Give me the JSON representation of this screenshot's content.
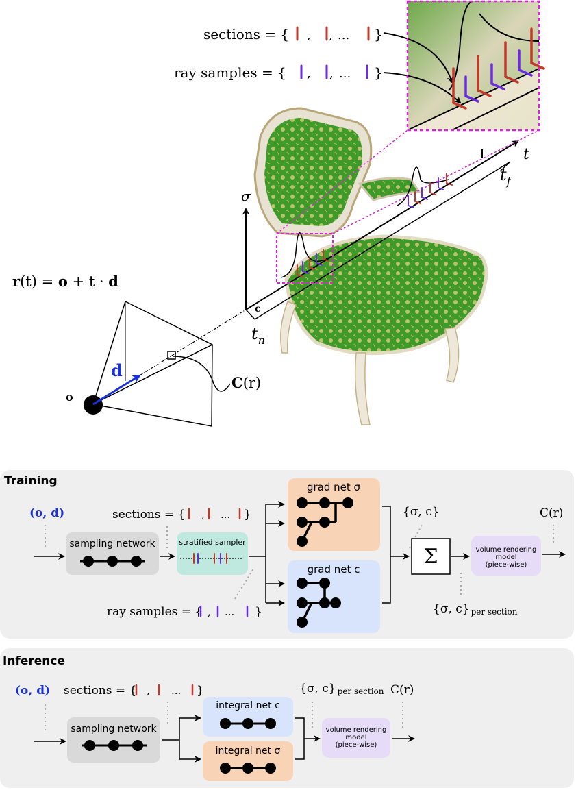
{
  "top": {
    "legend_sections": {
      "prefix": "sections = {",
      "ellipsis": "...",
      "close": "}"
    },
    "legend_samples": {
      "prefix": "ray samples = {",
      "ellipsis": "...",
      "close": "}"
    },
    "ray_eq": {
      "lhs": "r",
      "arg": "(t) = ",
      "o": "o",
      "plus": " + t · ",
      "d": "d"
    },
    "sigma": "σ",
    "t": "t",
    "t_f": {
      "base": "t",
      "sub": "f"
    },
    "t_n": {
      "base": "t",
      "sub": "n"
    },
    "c": "c",
    "d": "d",
    "o": "o",
    "color_out": {
      "C": "C",
      "arg": "(r)"
    }
  },
  "training": {
    "title": "Training",
    "input": "(o, d)",
    "sections_label": "sections = {",
    "ray_samples_label": "ray samples = {",
    "ellipsis": "...",
    "close": "}",
    "sampling_network": "sampling network",
    "stratified_sampler": "stratified sampler",
    "grad_net_sigma": "grad net σ",
    "grad_net_c": "grad net c",
    "sigma_c": "{σ, c}",
    "sum_symbol": "Σ",
    "sigma_c_section": {
      "main": "{σ, c}",
      "sub": "per section"
    },
    "vr_model": [
      "volume rendering",
      "model",
      "(piece-wise)"
    ],
    "output": "C(r)"
  },
  "inference": {
    "title": "Inference",
    "input": "(o, d)",
    "sections_label": "sections = {",
    "ellipsis": "...",
    "close": "}",
    "sampling_network": "sampling network",
    "integral_net_c": "integral net c",
    "integral_net_sigma": "integral net σ",
    "sigma_c_section": {
      "main": "{σ, c}",
      "sub": "per section"
    },
    "output": "C(r)",
    "vr_model": [
      "volume rendering",
      "model",
      "(piece-wise)"
    ]
  },
  "colors": {
    "section_tick": "#c0392b",
    "sample_tick": "#6a2ce0",
    "direction": "#1a33d6",
    "magenta": "#e020e0",
    "panel_bg": "#efefef",
    "grey_box": "#d9d9d9",
    "teal_box": "#bfe9de",
    "orange_box": "#f9d3b6",
    "blue_box": "#d8e4fb",
    "purple_box": "#e6dcf8"
  }
}
